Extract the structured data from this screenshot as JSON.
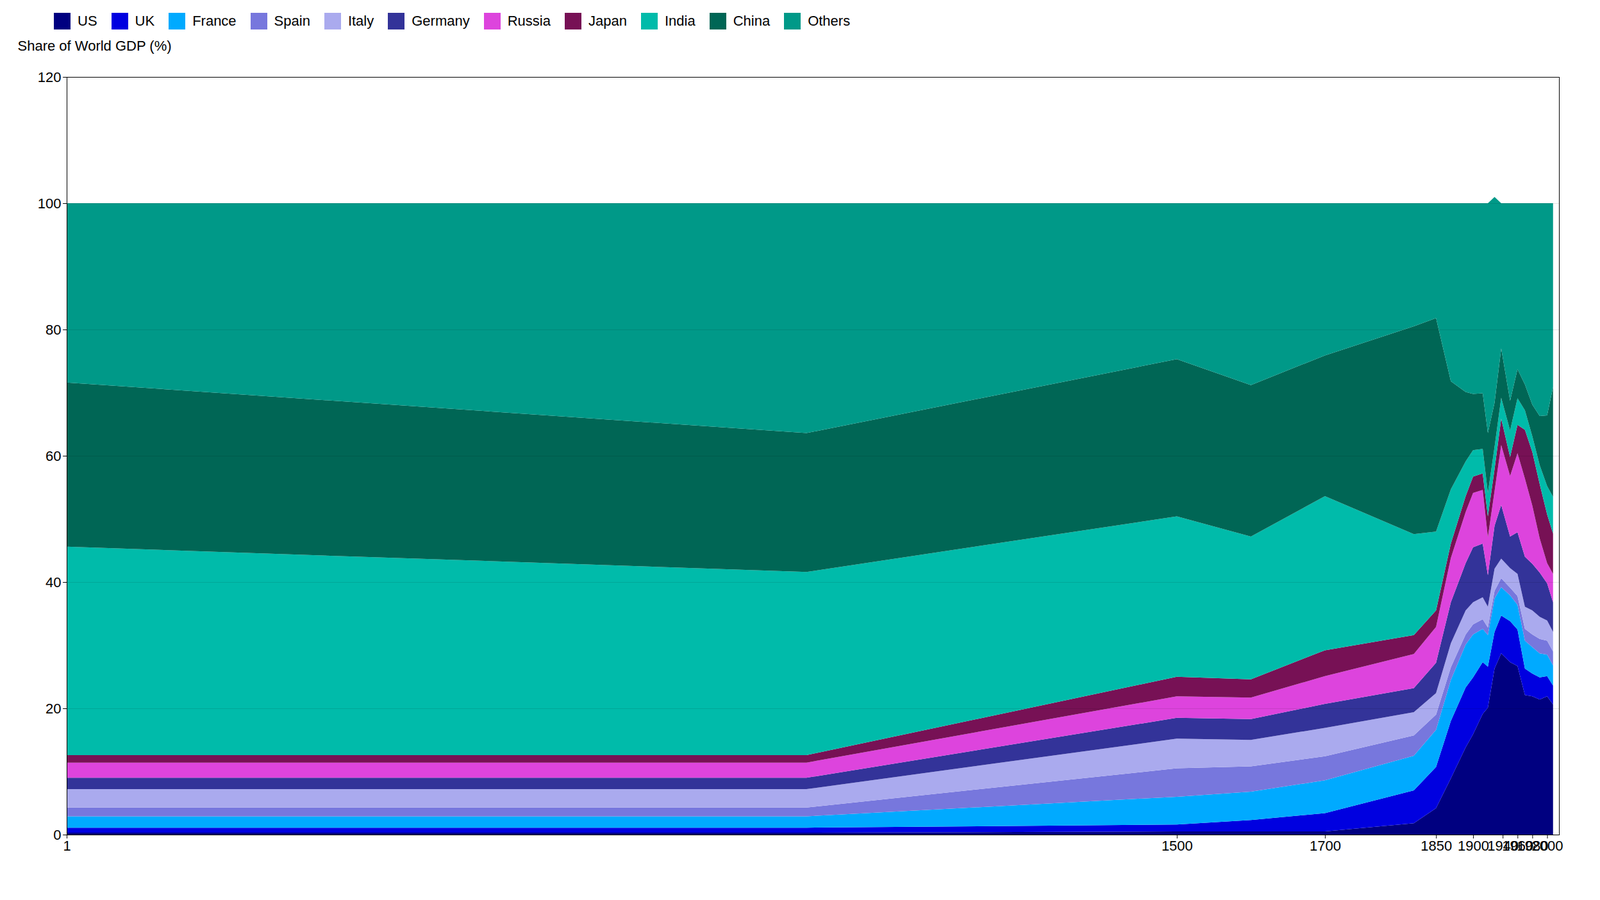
{
  "chart_data": {
    "type": "area",
    "stacked": true,
    "ylabel": "Share of World GDP (%)",
    "x": [
      1,
      1000,
      1500,
      1600,
      1700,
      1820,
      1850,
      1870,
      1890,
      1900,
      1913,
      1920,
      1929,
      1938,
      1950,
      1960,
      1970,
      1980,
      1990,
      2000,
      2008
    ],
    "series": [
      {
        "name": "US",
        "color": "#000080",
        "values": [
          0.3,
          0.3,
          0.5,
          0.5,
          0.5,
          1.8,
          4.2,
          8.9,
          13.8,
          15.9,
          19.1,
          20.1,
          26.3,
          28.7,
          27.3,
          26.7,
          22.1,
          21.9,
          21.4,
          21.9,
          20.6
        ]
      },
      {
        "name": "UK",
        "color": "#0000e0",
        "values": [
          0.8,
          0.8,
          1.1,
          1.8,
          2.9,
          5.2,
          6.5,
          9.1,
          9.5,
          9.0,
          8.2,
          6.5,
          5.8,
          6.0,
          6.5,
          5.8,
          4.2,
          3.6,
          3.5,
          3.2,
          3.0
        ]
      },
      {
        "name": "France",
        "color": "#00aaff",
        "values": [
          1.8,
          1.8,
          4.4,
          4.5,
          5.2,
          5.5,
          5.9,
          6.5,
          6.8,
          6.8,
          5.3,
          5.0,
          5.3,
          4.5,
          4.1,
          3.9,
          4.4,
          4.2,
          3.8,
          3.4,
          3.2
        ]
      },
      {
        "name": "Spain",
        "color": "#7777dd",
        "values": [
          1.4,
          1.4,
          4.5,
          4.0,
          3.8,
          3.2,
          2.4,
          2.0,
          1.6,
          1.6,
          1.5,
          1.2,
          1.2,
          1.4,
          1.2,
          1.4,
          1.9,
          2.0,
          2.3,
          2.2,
          2.2
        ]
      },
      {
        "name": "Italy",
        "color": "#aaaaee",
        "values": [
          2.9,
          2.9,
          4.7,
          4.2,
          4.5,
          3.7,
          3.4,
          3.8,
          3.8,
          3.5,
          3.5,
          3.3,
          3.5,
          3.1,
          3.1,
          3.5,
          3.5,
          3.8,
          3.5,
          3.2,
          3.1
        ]
      },
      {
        "name": "Germany",
        "color": "#333399",
        "values": [
          1.8,
          1.8,
          3.3,
          3.3,
          3.8,
          3.8,
          4.8,
          6.5,
          7.5,
          8.7,
          8.5,
          5.0,
          6.8,
          8.5,
          5.0,
          6.6,
          7.9,
          7.4,
          7.0,
          5.9,
          4.7
        ]
      },
      {
        "name": "Russia",
        "color": "#dd44dd",
        "values": [
          2.4,
          2.4,
          3.4,
          3.4,
          4.4,
          5.4,
          5.7,
          7.0,
          8.1,
          8.6,
          8.5,
          6.0,
          5.5,
          9.5,
          9.6,
          12.5,
          12.4,
          9.2,
          5.4,
          3.2,
          4.5
        ]
      },
      {
        "name": "Japan",
        "color": "#771155",
        "values": [
          1.2,
          1.2,
          3.1,
          2.9,
          4.1,
          3.0,
          2.6,
          2.3,
          2.5,
          2.6,
          2.6,
          3.3,
          3.5,
          4.2,
          3.0,
          4.5,
          7.7,
          8.5,
          8.6,
          7.7,
          6.4
        ]
      },
      {
        "name": "India",
        "color": "#00bbaa",
        "values": [
          33.0,
          29.0,
          25.4,
          22.6,
          24.4,
          16.0,
          12.5,
          8.6,
          5.5,
          4.2,
          3.9,
          3.7,
          3.5,
          3.3,
          4.2,
          4.2,
          3.1,
          2.5,
          3.0,
          4.5,
          5.8
        ]
      },
      {
        "name": "China",
        "color": "#006655",
        "values": [
          26.0,
          22.0,
          24.9,
          24.0,
          22.3,
          32.9,
          33.8,
          17.1,
          11.0,
          8.9,
          8.8,
          9.5,
          7.0,
          7.8,
          4.7,
          4.6,
          4.1,
          5.0,
          7.8,
          11.2,
          17.4
        ]
      },
      {
        "name": "Others",
        "color": "#009988",
        "values": [
          28.4,
          36.4,
          24.7,
          28.8,
          24.1,
          19.5,
          18.2,
          28.2,
          29.9,
          30.2,
          30.1,
          36.4,
          32.6,
          23.0,
          31.3,
          26.3,
          28.7,
          31.9,
          33.7,
          33.6,
          29.1
        ]
      }
    ],
    "xlim": [
      1,
      2016
    ],
    "ylim": [
      0,
      120
    ],
    "xticks": [
      1,
      1500,
      1700,
      1850,
      1900,
      1940,
      1960,
      1980,
      2000
    ],
    "yticks": [
      0,
      20,
      40,
      60,
      80,
      100,
      120
    ],
    "grid": true,
    "legend": "top"
  }
}
